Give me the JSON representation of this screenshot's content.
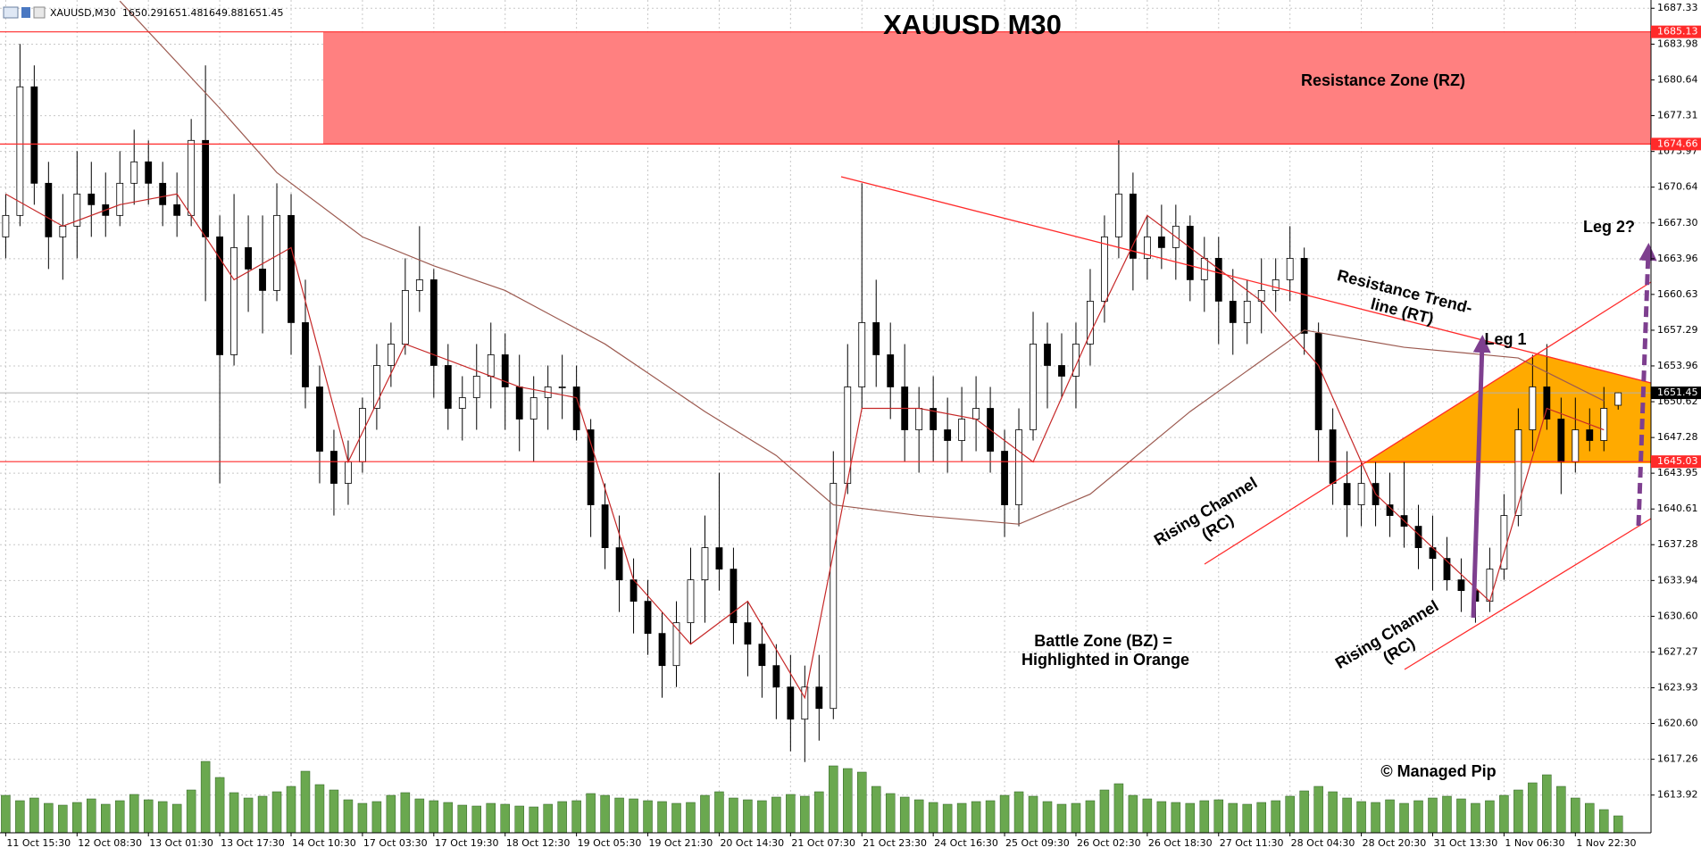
{
  "chart_data": {
    "type": "candlestick",
    "symbol": "XAUUSD,M30",
    "title": "XAUUSD M30",
    "candles": [
      [
        1666,
        1670,
        1664,
        1668
      ],
      [
        1668,
        1684,
        1667,
        1680
      ],
      [
        1680,
        1682,
        1669,
        1671
      ],
      [
        1671,
        1673,
        1663,
        1666
      ],
      [
        1666,
        1670,
        1662,
        1667
      ],
      [
        1667,
        1674,
        1664,
        1670
      ],
      [
        1670,
        1673,
        1666,
        1669
      ],
      [
        1669,
        1672,
        1666,
        1668
      ],
      [
        1668,
        1674,
        1667,
        1671
      ],
      [
        1671,
        1676,
        1669,
        1673
      ],
      [
        1673,
        1675,
        1669,
        1671
      ],
      [
        1671,
        1673,
        1667,
        1669
      ],
      [
        1669,
        1672,
        1666,
        1668
      ],
      [
        1668,
        1677,
        1667,
        1675
      ],
      [
        1675,
        1682,
        1660,
        1666
      ],
      [
        1666,
        1668,
        1643,
        1655
      ],
      [
        1655,
        1670,
        1654,
        1665
      ],
      [
        1665,
        1668,
        1659,
        1663
      ],
      [
        1663,
        1668,
        1657,
        1661
      ],
      [
        1661,
        1671,
        1660,
        1668
      ],
      [
        1668,
        1670,
        1655,
        1658
      ],
      [
        1658,
        1662,
        1650,
        1652
      ],
      [
        1652,
        1654,
        1643,
        1646
      ],
      [
        1646,
        1648,
        1640,
        1643
      ],
      [
        1643,
        1647,
        1641,
        1645
      ],
      [
        1645,
        1651,
        1644,
        1650
      ],
      [
        1650,
        1656,
        1648,
        1654
      ],
      [
        1654,
        1658,
        1652,
        1656
      ],
      [
        1656,
        1664,
        1655,
        1661
      ],
      [
        1661,
        1667,
        1659,
        1662
      ],
      [
        1662,
        1663,
        1651,
        1654
      ],
      [
        1654,
        1656,
        1648,
        1650
      ],
      [
        1650,
        1653,
        1647,
        1651
      ],
      [
        1651,
        1656,
        1648,
        1653
      ],
      [
        1653,
        1658,
        1650,
        1655
      ],
      [
        1655,
        1657,
        1648,
        1652
      ],
      [
        1652,
        1655,
        1646,
        1649
      ],
      [
        1649,
        1653,
        1645,
        1651
      ],
      [
        1651,
        1654,
        1648,
        1652
      ],
      [
        1652,
        1655,
        1649,
        1652
      ],
      [
        1652,
        1654,
        1647,
        1648
      ],
      [
        1648,
        1649,
        1638,
        1641
      ],
      [
        1641,
        1643,
        1635,
        1637
      ],
      [
        1637,
        1640,
        1631,
        1634
      ],
      [
        1634,
        1636,
        1629,
        1632
      ],
      [
        1632,
        1634,
        1627,
        1629
      ],
      [
        1629,
        1631,
        1623,
        1626
      ],
      [
        1626,
        1632,
        1624,
        1630
      ],
      [
        1630,
        1637,
        1628,
        1634
      ],
      [
        1634,
        1640,
        1630,
        1637
      ],
      [
        1637,
        1644,
        1633,
        1635
      ],
      [
        1635,
        1637,
        1628,
        1630
      ],
      [
        1630,
        1632,
        1625,
        1628
      ],
      [
        1628,
        1630,
        1623,
        1626
      ],
      [
        1626,
        1628,
        1621,
        1624
      ],
      [
        1624,
        1627,
        1618,
        1621
      ],
      [
        1621,
        1626,
        1617,
        1624
      ],
      [
        1624,
        1627,
        1619,
        1622
      ],
      [
        1622,
        1646,
        1621,
        1643
      ],
      [
        1643,
        1656,
        1642,
        1652
      ],
      [
        1652,
        1671,
        1650,
        1658
      ],
      [
        1658,
        1662,
        1652,
        1655
      ],
      [
        1655,
        1658,
        1649,
        1652
      ],
      [
        1652,
        1656,
        1645,
        1648
      ],
      [
        1648,
        1652,
        1644,
        1650
      ],
      [
        1650,
        1653,
        1645,
        1648
      ],
      [
        1648,
        1651,
        1644,
        1647
      ],
      [
        1647,
        1652,
        1645,
        1649
      ],
      [
        1649,
        1653,
        1646,
        1650
      ],
      [
        1650,
        1652,
        1644,
        1646
      ],
      [
        1646,
        1648,
        1638,
        1641
      ],
      [
        1641,
        1650,
        1639,
        1648
      ],
      [
        1648,
        1659,
        1647,
        1656
      ],
      [
        1656,
        1658,
        1650,
        1654
      ],
      [
        1654,
        1657,
        1651,
        1653
      ],
      [
        1653,
        1658,
        1650,
        1656
      ],
      [
        1656,
        1663,
        1654,
        1660
      ],
      [
        1660,
        1668,
        1658,
        1666
      ],
      [
        1666,
        1675,
        1664,
        1670
      ],
      [
        1670,
        1672,
        1661,
        1664
      ],
      [
        1664,
        1668,
        1662,
        1666
      ],
      [
        1666,
        1669,
        1663,
        1665
      ],
      [
        1665,
        1669,
        1662,
        1667
      ],
      [
        1667,
        1668,
        1660,
        1662
      ],
      [
        1662,
        1666,
        1659,
        1664
      ],
      [
        1664,
        1666,
        1656,
        1660
      ],
      [
        1660,
        1663,
        1655,
        1658
      ],
      [
        1658,
        1662,
        1656,
        1660
      ],
      [
        1660,
        1664,
        1657,
        1661
      ],
      [
        1661,
        1664,
        1659,
        1662
      ],
      [
        1662,
        1667,
        1660,
        1664
      ],
      [
        1664,
        1665,
        1655,
        1657
      ],
      [
        1657,
        1658,
        1645,
        1648
      ],
      [
        1648,
        1650,
        1641,
        1643
      ],
      [
        1643,
        1646,
        1638,
        1641
      ],
      [
        1641,
        1645,
        1639,
        1643
      ],
      [
        1643,
        1645,
        1639,
        1641
      ],
      [
        1641,
        1644,
        1638,
        1640
      ],
      [
        1640,
        1645,
        1637,
        1639
      ],
      [
        1639,
        1641,
        1635,
        1637
      ],
      [
        1637,
        1640,
        1633,
        1636
      ],
      [
        1636,
        1638,
        1633,
        1634
      ],
      [
        1634,
        1636,
        1631,
        1633
      ],
      [
        1633,
        1635,
        1630,
        1632
      ],
      [
        1632,
        1637,
        1631,
        1635
      ],
      [
        1635,
        1642,
        1634,
        1640
      ],
      [
        1640,
        1650,
        1639,
        1648
      ],
      [
        1648,
        1655,
        1646,
        1652
      ],
      [
        1652,
        1656,
        1648,
        1649
      ],
      [
        1649,
        1651,
        1642,
        1645
      ],
      [
        1645,
        1651,
        1644,
        1648
      ],
      [
        1648,
        1650,
        1646,
        1647
      ],
      [
        1647,
        1652,
        1646,
        1650
      ],
      [
        1650.29,
        1651.48,
        1649.88,
        1651.45
      ]
    ],
    "up_color": "#ffffff",
    "down_color": "#000000",
    "ma_fast": {
      "color": "#c62828",
      "x": [
        0,
        4,
        8,
        12,
        16,
        20,
        24,
        28,
        32,
        36,
        40,
        44,
        48,
        52,
        56,
        60,
        64,
        68,
        72,
        76,
        80,
        84,
        88,
        92,
        96,
        100,
        104,
        108,
        112
      ],
      "values": [
        1670,
        1667,
        1669,
        1670,
        1662,
        1665,
        1645,
        1656,
        1654,
        1652,
        1651,
        1634,
        1628,
        1632,
        1623,
        1650,
        1650,
        1649,
        1645,
        1657,
        1668,
        1664,
        1660,
        1654,
        1642,
        1637,
        1632,
        1650,
        1648
      ]
    },
    "ma_slow": {
      "color": "#9c5a50",
      "x": [
        8,
        15,
        19,
        25,
        30,
        35,
        42,
        49,
        54,
        58,
        64,
        71,
        76,
        83,
        91,
        98,
        106,
        112
      ],
      "values": [
        1688,
        1678,
        1672,
        1666,
        1663.3,
        1661,
        1656,
        1649.7,
        1645.6,
        1641,
        1640,
        1639.2,
        1642,
        1649.7,
        1657.3,
        1655.7,
        1654.7,
        1650.7
      ]
    },
    "volume": {
      "color": "#6aa84f",
      "values": [
        4200,
        3600,
        3900,
        3300,
        3100,
        3400,
        3800,
        3200,
        3600,
        4300,
        3700,
        3500,
        3200,
        4800,
        8000,
        6200,
        4500,
        3900,
        4100,
        4600,
        5200,
        6900,
        5400,
        4800,
        3700,
        3300,
        3500,
        4200,
        4500,
        3800,
        3600,
        3400,
        3100,
        3000,
        3300,
        3200,
        3000,
        2900,
        3200,
        3500,
        3600,
        4400,
        4200,
        3900,
        3800,
        3600,
        3500,
        3300,
        3400,
        4200,
        4600,
        3900,
        3700,
        3600,
        4000,
        4300,
        4100,
        4600,
        7500,
        7200,
        6800,
        5200,
        4400,
        4000,
        3700,
        3400,
        3200,
        3300,
        3500,
        3600,
        4200,
        4600,
        4100,
        3500,
        3200,
        3300,
        3600,
        4800,
        5500,
        4200,
        3800,
        3500,
        3400,
        3300,
        3600,
        3700,
        3300,
        3200,
        3400,
        3600,
        4100,
        4700,
        5200,
        4600,
        3900,
        3500,
        3400,
        3700,
        3300,
        3600,
        3900,
        4100,
        3800,
        3300,
        3600,
        4200,
        4800,
        5600,
        6500,
        5200,
        3900,
        3300,
        2600,
        1900
      ]
    },
    "levels": [
      {
        "value": 1685.13
      },
      {
        "value": 1674.66
      },
      {
        "value": 1645.03
      }
    ],
    "level_color": "#ff2a2a",
    "zone_color": "#ff8080",
    "current_color": "#b0b0b0",
    "xlim": [
      -0.4,
      115.3
    ],
    "ylim": [
      1610.4,
      1688.1
    ],
    "xticks": [
      {
        "value": 0,
        "label": "11 Oct 15:30"
      },
      {
        "value": 5,
        "label": "12 Oct 08:30"
      },
      {
        "value": 10,
        "label": "13 Oct 01:30"
      },
      {
        "value": 15,
        "label": "13 Oct 17:30"
      },
      {
        "value": 20,
        "label": "14 Oct 10:30"
      },
      {
        "value": 25,
        "label": "17 Oct 03:30"
      },
      {
        "value": 30,
        "label": "17 Oct 19:30"
      },
      {
        "value": 35,
        "label": "18 Oct 12:30"
      },
      {
        "value": 40,
        "label": "19 Oct 05:30"
      },
      {
        "value": 45,
        "label": "19 Oct 21:30"
      },
      {
        "value": 50,
        "label": "20 Oct 14:30"
      },
      {
        "value": 55,
        "label": "21 Oct 07:30"
      },
      {
        "value": 60,
        "label": "21 Oct 23:30"
      },
      {
        "value": 65,
        "label": "24 Oct 16:30"
      },
      {
        "value": 70,
        "label": "25 Oct 09:30"
      },
      {
        "value": 75,
        "label": "26 Oct 02:30"
      },
      {
        "value": 80,
        "label": "26 Oct 18:30"
      },
      {
        "value": 85,
        "label": "27 Oct 11:30"
      },
      {
        "value": 90,
        "label": "28 Oct 04:30"
      },
      {
        "value": 95,
        "label": "28 Oct 20:30"
      },
      {
        "value": 100,
        "label": "31 Oct 13:30"
      },
      {
        "value": 105,
        "label": "1 Nov 06:30"
      },
      {
        "value": 110,
        "label": "1 Nov 22:30"
      }
    ],
    "yticks": [
      1687.33,
      1683.98,
      1680.64,
      1677.31,
      1673.97,
      1670.64,
      {
        "value": 1667.3,
        "label": "1667.30"
      },
      1663.96,
      1660.63,
      1657.29,
      1653.96,
      1650.62,
      1647.28,
      1643.95,
      1640.61,
      1637.28,
      1633.94,
      {
        "value": 1630.6,
        "label": "1630.60"
      },
      1627.27,
      1623.93,
      {
        "value": 1620.6,
        "label": "1620.60"
      },
      1617.26,
      1613.92
    ],
    "grid": true,
    "annotations": {
      "resistance_zone": "Resistance Zone (RZ)",
      "trend_line": [
        "Resistance Trend-",
        "line (RT)"
      ],
      "leg1": "Leg 1",
      "leg2": "Leg 2?",
      "channel_upper": [
        "Rising Channel",
        "(RC)"
      ],
      "channel_lower": [
        "Rising Channel",
        "(RC)"
      ],
      "battle_zone": [
        "Battle Zone (BZ) =",
        "Highlighted in Orange"
      ],
      "copyright": "© Managed Pip"
    }
  }
}
